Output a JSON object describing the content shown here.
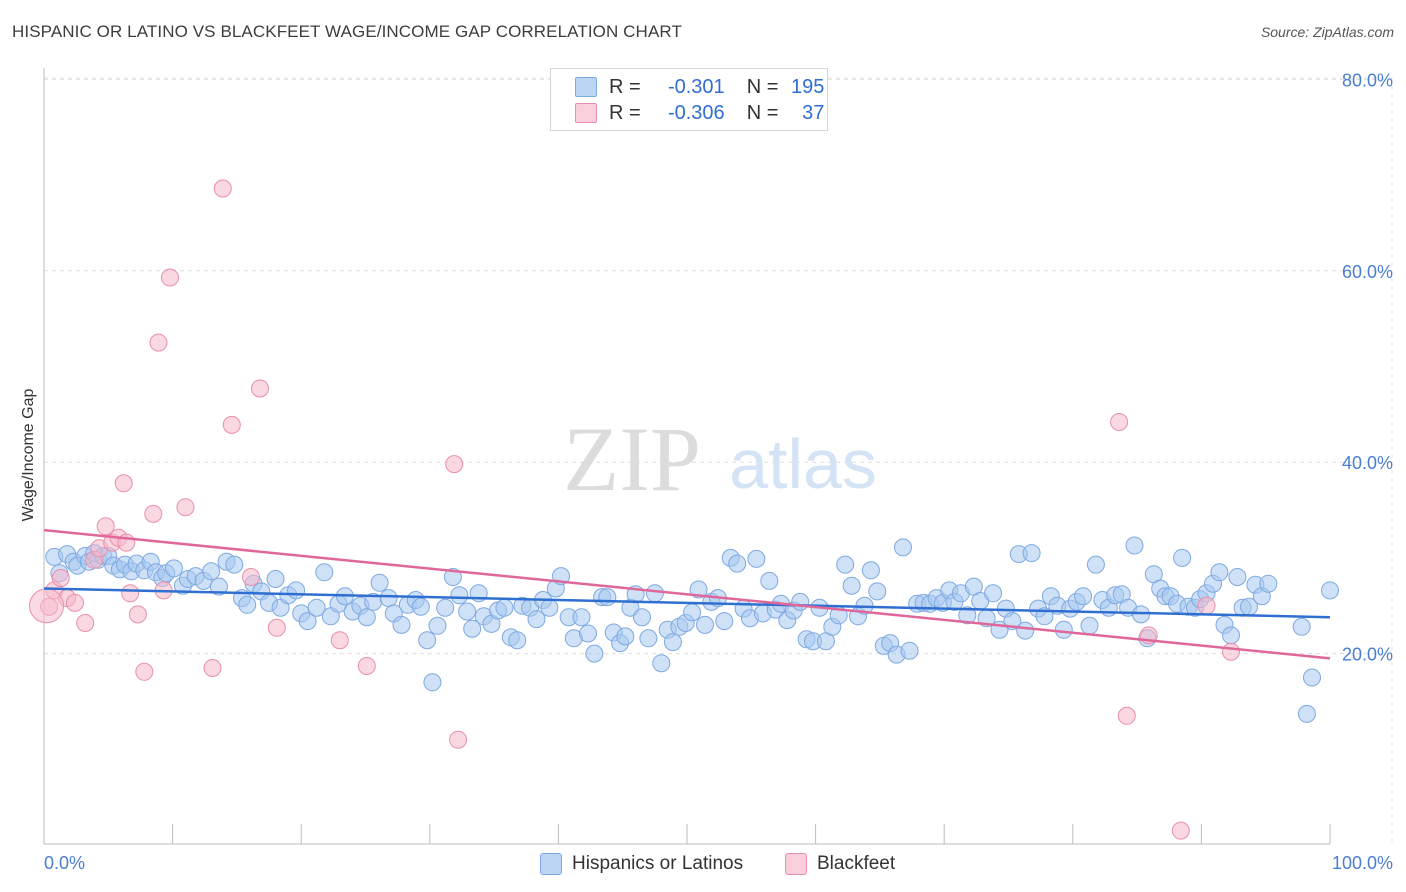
{
  "header": {
    "title": "HISPANIC OR LATINO VS BLACKFEET WAGE/INCOME GAP CORRELATION CHART",
    "source": "Source: ZipAtlas.com"
  },
  "watermark": {
    "zip": "ZIP",
    "atlas": "atlas"
  },
  "legend": {
    "rows": [
      {
        "r_label": "R =",
        "r_value": "-0.301",
        "n_label": "N =",
        "n_value": "195",
        "color": "#a8c8f0"
      },
      {
        "r_label": "R =",
        "r_value": "-0.306",
        "n_label": "N =",
        "n_value": "37",
        "color": "#f5b8cb"
      }
    ]
  },
  "bottom_legend": [
    {
      "label": "Hispanics or Latinos",
      "color": "#a8c8f0"
    },
    {
      "label": "Blackfeet",
      "color": "#f5b8cb"
    }
  ],
  "chart_data": {
    "type": "scatter",
    "title": "HISPANIC OR LATINO VS BLACKFEET WAGE/INCOME GAP CORRELATION CHART",
    "xlabel": "",
    "ylabel": "Wage/Income Gap",
    "xlim": [
      0,
      100
    ],
    "ylim": [
      0,
      84
    ],
    "x_tick_labels": [
      "0.0%",
      "100.0%"
    ],
    "y_ticks": [
      20,
      40,
      60,
      80
    ],
    "y_tick_labels": [
      "20.0%",
      "40.0%",
      "60.0%",
      "80.0%"
    ],
    "grid": true,
    "series": [
      {
        "name": "Hispanics or Latinos",
        "color": "#a8c8f0",
        "stroke": "#7ea9e1",
        "trend": {
          "x": [
            0,
            100
          ],
          "y": [
            26.8,
            23.8
          ],
          "color": "#2f6fd1"
        },
        "points": [
          [
            0.8,
            30.1
          ],
          [
            1.2,
            28.4
          ],
          [
            1.8,
            30.4
          ],
          [
            2.3,
            29.6
          ],
          [
            2.6,
            29.2
          ],
          [
            3.2,
            30.2
          ],
          [
            3.5,
            29.6
          ],
          [
            3.9,
            30.5
          ],
          [
            4.2,
            29.8
          ],
          [
            4.6,
            30.2
          ],
          [
            5.0,
            30.2
          ],
          [
            5.4,
            29.2
          ],
          [
            5.9,
            28.8
          ],
          [
            6.3,
            29.3
          ],
          [
            6.8,
            28.6
          ],
          [
            7.2,
            29.4
          ],
          [
            7.8,
            28.7
          ],
          [
            8.3,
            29.6
          ],
          [
            8.7,
            28.5
          ],
          [
            9.2,
            27.9
          ],
          [
            9.5,
            28.4
          ],
          [
            10.1,
            28.9
          ],
          [
            10.8,
            27.1
          ],
          [
            11.2,
            27.8
          ],
          [
            11.8,
            28.1
          ],
          [
            12.4,
            27.6
          ],
          [
            13.0,
            28.6
          ],
          [
            13.6,
            27.0
          ],
          [
            14.2,
            29.6
          ],
          [
            14.8,
            29.3
          ],
          [
            15.4,
            25.8
          ],
          [
            15.8,
            25.1
          ],
          [
            16.3,
            27.3
          ],
          [
            16.9,
            26.5
          ],
          [
            17.5,
            25.3
          ],
          [
            18.0,
            27.8
          ],
          [
            18.4,
            24.8
          ],
          [
            19.0,
            26.1
          ],
          [
            19.6,
            26.6
          ],
          [
            20.0,
            24.2
          ],
          [
            20.5,
            23.4
          ],
          [
            21.2,
            24.8
          ],
          [
            21.8,
            28.5
          ],
          [
            22.3,
            23.9
          ],
          [
            22.9,
            25.2
          ],
          [
            23.4,
            26.0
          ],
          [
            24.0,
            24.4
          ],
          [
            24.6,
            25.0
          ],
          [
            25.1,
            23.8
          ],
          [
            25.6,
            25.4
          ],
          [
            26.1,
            27.4
          ],
          [
            26.8,
            25.8
          ],
          [
            27.2,
            24.2
          ],
          [
            27.8,
            23.0
          ],
          [
            28.3,
            25.1
          ],
          [
            28.9,
            25.6
          ],
          [
            29.3,
            24.9
          ],
          [
            29.8,
            21.4
          ],
          [
            30.2,
            17.0
          ],
          [
            30.6,
            22.9
          ],
          [
            31.2,
            24.8
          ],
          [
            31.8,
            28.0
          ],
          [
            32.3,
            26.1
          ],
          [
            32.9,
            24.4
          ],
          [
            33.3,
            22.6
          ],
          [
            33.8,
            26.3
          ],
          [
            34.2,
            23.9
          ],
          [
            34.8,
            23.1
          ],
          [
            35.3,
            24.5
          ],
          [
            35.8,
            24.8
          ],
          [
            36.3,
            21.7
          ],
          [
            36.8,
            21.4
          ],
          [
            37.2,
            25.0
          ],
          [
            37.8,
            24.8
          ],
          [
            38.3,
            23.6
          ],
          [
            38.8,
            25.6
          ],
          [
            39.3,
            24.8
          ],
          [
            39.8,
            26.8
          ],
          [
            40.2,
            28.1
          ],
          [
            40.8,
            23.8
          ],
          [
            41.2,
            21.6
          ],
          [
            41.8,
            23.8
          ],
          [
            42.3,
            22.1
          ],
          [
            42.8,
            20.0
          ],
          [
            43.4,
            25.9
          ],
          [
            43.8,
            25.9
          ],
          [
            44.3,
            22.2
          ],
          [
            44.8,
            21.1
          ],
          [
            45.2,
            21.8
          ],
          [
            45.6,
            24.8
          ],
          [
            46.0,
            26.2
          ],
          [
            46.5,
            23.8
          ],
          [
            47.0,
            21.6
          ],
          [
            47.5,
            26.3
          ],
          [
            48.0,
            19.0
          ],
          [
            48.5,
            22.5
          ],
          [
            48.9,
            21.2
          ],
          [
            49.4,
            22.8
          ],
          [
            49.9,
            23.2
          ],
          [
            50.4,
            24.3
          ],
          [
            50.9,
            26.7
          ],
          [
            51.4,
            23.0
          ],
          [
            51.9,
            25.4
          ],
          [
            52.4,
            25.8
          ],
          [
            52.9,
            23.4
          ],
          [
            53.4,
            30.0
          ],
          [
            53.9,
            29.4
          ],
          [
            54.4,
            24.7
          ],
          [
            54.9,
            23.7
          ],
          [
            55.4,
            29.9
          ],
          [
            55.9,
            24.2
          ],
          [
            56.4,
            27.6
          ],
          [
            56.9,
            24.6
          ],
          [
            57.3,
            25.2
          ],
          [
            57.8,
            23.5
          ],
          [
            58.3,
            24.5
          ],
          [
            58.8,
            25.4
          ],
          [
            59.3,
            21.5
          ],
          [
            59.8,
            21.3
          ],
          [
            60.3,
            24.8
          ],
          [
            60.8,
            21.3
          ],
          [
            61.3,
            22.8
          ],
          [
            61.8,
            24.0
          ],
          [
            62.3,
            29.3
          ],
          [
            62.8,
            27.1
          ],
          [
            63.3,
            23.9
          ],
          [
            63.8,
            25.0
          ],
          [
            64.3,
            28.7
          ],
          [
            64.8,
            26.5
          ],
          [
            65.3,
            20.8
          ],
          [
            65.8,
            21.1
          ],
          [
            66.3,
            19.9
          ],
          [
            66.8,
            31.1
          ],
          [
            67.3,
            20.3
          ],
          [
            67.9,
            25.2
          ],
          [
            68.4,
            25.3
          ],
          [
            68.9,
            25.2
          ],
          [
            69.4,
            25.8
          ],
          [
            69.9,
            25.3
          ],
          [
            70.4,
            26.6
          ],
          [
            70.8,
            25.4
          ],
          [
            71.3,
            26.3
          ],
          [
            71.8,
            24.0
          ],
          [
            72.3,
            27.0
          ],
          [
            72.8,
            25.5
          ],
          [
            73.3,
            23.7
          ],
          [
            73.8,
            26.3
          ],
          [
            74.3,
            22.5
          ],
          [
            74.8,
            24.7
          ],
          [
            75.3,
            23.4
          ],
          [
            75.8,
            30.4
          ],
          [
            76.3,
            22.4
          ],
          [
            76.8,
            30.5
          ],
          [
            77.3,
            24.7
          ],
          [
            77.8,
            23.9
          ],
          [
            78.3,
            26.0
          ],
          [
            78.8,
            25.0
          ],
          [
            79.3,
            22.5
          ],
          [
            79.8,
            24.7
          ],
          [
            80.3,
            25.4
          ],
          [
            80.8,
            26.0
          ],
          [
            81.3,
            22.9
          ],
          [
            81.8,
            29.3
          ],
          [
            82.3,
            25.6
          ],
          [
            82.8,
            24.8
          ],
          [
            83.3,
            26.1
          ],
          [
            83.8,
            26.2
          ],
          [
            84.3,
            24.8
          ],
          [
            84.8,
            31.3
          ],
          [
            85.3,
            24.1
          ],
          [
            85.8,
            21.6
          ],
          [
            86.3,
            28.3
          ],
          [
            86.8,
            26.8
          ],
          [
            87.2,
            26.0
          ],
          [
            87.6,
            26.0
          ],
          [
            88.1,
            25.2
          ],
          [
            88.5,
            30.0
          ],
          [
            89.0,
            24.9
          ],
          [
            89.5,
            24.8
          ],
          [
            89.9,
            25.7
          ],
          [
            90.4,
            26.3
          ],
          [
            90.9,
            27.3
          ],
          [
            91.4,
            28.5
          ],
          [
            91.8,
            23.0
          ],
          [
            92.3,
            21.9
          ],
          [
            92.8,
            28.0
          ],
          [
            93.2,
            24.8
          ],
          [
            93.7,
            24.9
          ],
          [
            94.2,
            27.2
          ],
          [
            94.7,
            26.0
          ],
          [
            95.2,
            27.3
          ],
          [
            97.8,
            22.8
          ],
          [
            98.2,
            13.7
          ],
          [
            98.6,
            17.5
          ],
          [
            100.0,
            26.6
          ]
        ]
      },
      {
        "name": "Blackfeet",
        "color": "#f5b8cb",
        "stroke": "#e98fab",
        "trend": {
          "x": [
            0,
            100
          ],
          "y": [
            32.9,
            19.5
          ],
          "color": "#e0679a"
        },
        "points": [
          [
            0.4,
            24.9
          ],
          [
            0.8,
            26.6
          ],
          [
            1.3,
            27.9
          ],
          [
            1.8,
            25.8
          ],
          [
            2.4,
            25.3
          ],
          [
            3.2,
            23.2
          ],
          [
            3.9,
            29.8
          ],
          [
            4.3,
            31.0
          ],
          [
            4.8,
            33.3
          ],
          [
            5.3,
            31.6
          ],
          [
            5.8,
            32.1
          ],
          [
            6.2,
            37.8
          ],
          [
            6.4,
            31.6
          ],
          [
            6.7,
            26.3
          ],
          [
            7.3,
            24.1
          ],
          [
            7.8,
            18.1
          ],
          [
            8.5,
            34.6
          ],
          [
            8.9,
            52.5
          ],
          [
            9.3,
            26.6
          ],
          [
            9.8,
            59.3
          ],
          [
            11.0,
            35.3
          ],
          [
            13.1,
            18.5
          ],
          [
            13.9,
            68.6
          ],
          [
            14.6,
            43.9
          ],
          [
            16.1,
            28.0
          ],
          [
            16.8,
            47.7
          ],
          [
            18.1,
            22.7
          ],
          [
            23.0,
            21.4
          ],
          [
            25.1,
            18.7
          ],
          [
            31.9,
            39.8
          ],
          [
            32.2,
            11.0
          ],
          [
            83.6,
            44.2
          ],
          [
            84.2,
            13.5
          ],
          [
            85.9,
            21.9
          ],
          [
            88.4,
            1.5
          ],
          [
            90.4,
            25.0
          ],
          [
            92.3,
            20.2
          ]
        ]
      }
    ]
  }
}
